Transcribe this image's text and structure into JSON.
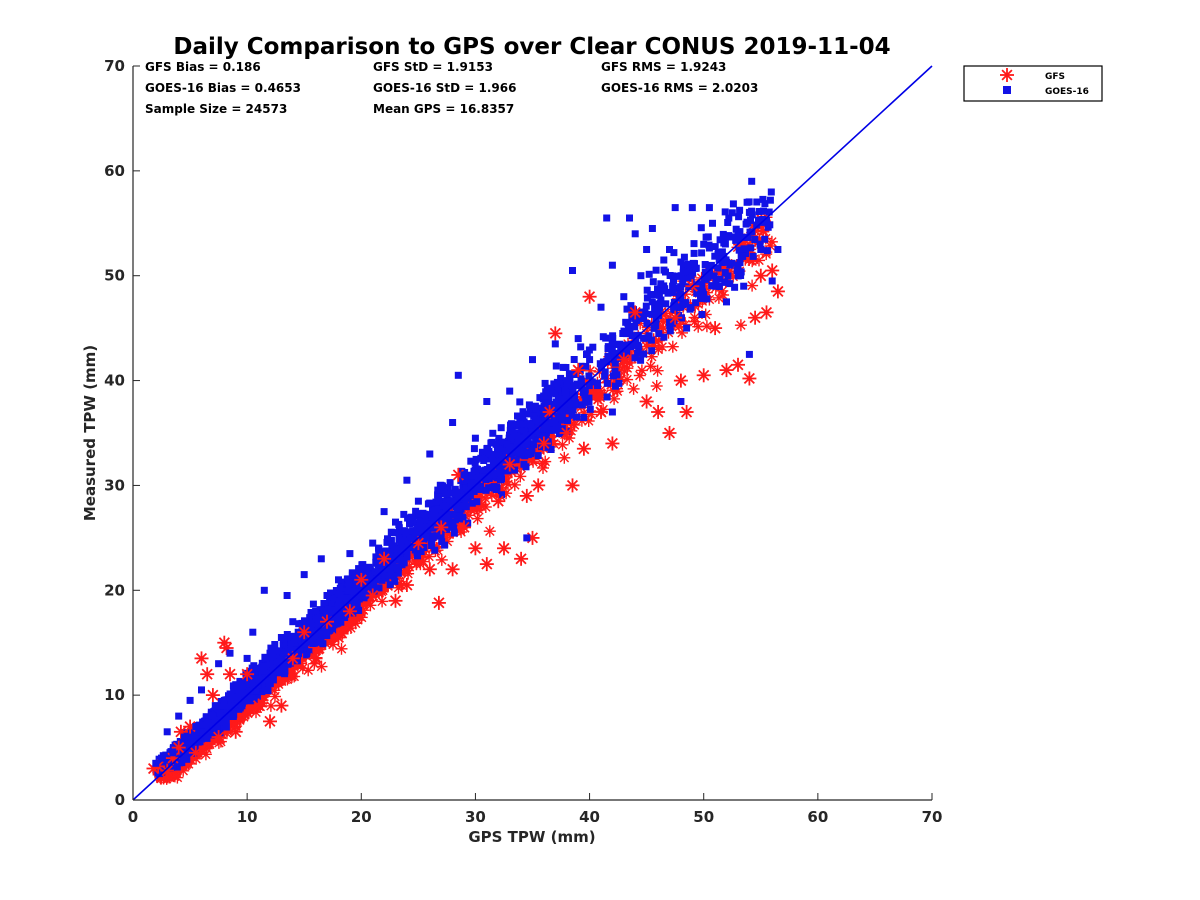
{
  "chart_data": {
    "type": "scatter",
    "title": "Daily Comparison to GPS over Clear CONUS 2019-11-04",
    "xlabel": "GPS TPW (mm)",
    "ylabel": "Measured TPW (mm)",
    "xlim": [
      0,
      70
    ],
    "ylim": [
      0,
      70
    ],
    "xticks": [
      0,
      10,
      20,
      30,
      40,
      50,
      60,
      70
    ],
    "yticks": [
      0,
      10,
      20,
      30,
      40,
      50,
      60,
      70
    ],
    "grid": false,
    "legend_position": "outside-top-right",
    "reference_line": {
      "name": "1:1 line",
      "x": [
        0,
        70
      ],
      "y": [
        0,
        70
      ],
      "color": "#0000e6"
    },
    "stats": [
      [
        "GFS Bias = 0.186",
        "GFS StD = 1.9153",
        "GFS RMS = 1.9243"
      ],
      [
        "GOES-16 Bias = 0.4653",
        "GOES-16 StD = 1.966",
        "GOES-16 RMS = 2.0203"
      ],
      [
        "Sample Size = 24573",
        "Mean GPS = 16.8357"
      ]
    ],
    "series": [
      {
        "name": "GFS",
        "marker": "asterisk",
        "color": "#ff1a1a",
        "points": [
          [
            1.8,
            3.0
          ],
          [
            2.2,
            3.2
          ],
          [
            3.0,
            2.8
          ],
          [
            3.5,
            4.0
          ],
          [
            4.0,
            5.0
          ],
          [
            4.2,
            6.5
          ],
          [
            5.0,
            7.0
          ],
          [
            5.5,
            4.5
          ],
          [
            6.0,
            13.5
          ],
          [
            6.5,
            12.0
          ],
          [
            7.0,
            10.0
          ],
          [
            7.5,
            6.0
          ],
          [
            8.0,
            15.0
          ],
          [
            8.2,
            14.5
          ],
          [
            8.5,
            12.0
          ],
          [
            9.0,
            6.5
          ],
          [
            10.0,
            12.0
          ],
          [
            11.0,
            9.0
          ],
          [
            12.0,
            7.5
          ],
          [
            13.0,
            9.0
          ],
          [
            14.0,
            13.5
          ],
          [
            15.0,
            16.0
          ],
          [
            16.0,
            13.5
          ],
          [
            17.0,
            17.0
          ],
          [
            18.0,
            15.5
          ],
          [
            19.0,
            18.0
          ],
          [
            20.0,
            21.0
          ],
          [
            21.0,
            19.5
          ],
          [
            22.0,
            23.0
          ],
          [
            23.0,
            19.0
          ],
          [
            24.0,
            20.5
          ],
          [
            25.0,
            24.5
          ],
          [
            26.0,
            22.0
          ],
          [
            26.8,
            18.8
          ],
          [
            27.0,
            26.0
          ],
          [
            28.0,
            22.0
          ],
          [
            28.5,
            31.0
          ],
          [
            29.0,
            26.0
          ],
          [
            30.0,
            24.0
          ],
          [
            31.0,
            22.5
          ],
          [
            32.0,
            28.5
          ],
          [
            32.5,
            24.0
          ],
          [
            33.0,
            32.0
          ],
          [
            34.0,
            23.0
          ],
          [
            34.5,
            29.0
          ],
          [
            35.0,
            25.0
          ],
          [
            35.5,
            30.0
          ],
          [
            36.0,
            34.0
          ],
          [
            36.5,
            37.0
          ],
          [
            37.0,
            44.5
          ],
          [
            38.0,
            35.0
          ],
          [
            38.5,
            30.0
          ],
          [
            39.0,
            41.0
          ],
          [
            39.5,
            33.5
          ],
          [
            40.0,
            48.0
          ],
          [
            41.0,
            37.0
          ],
          [
            42.0,
            34.0
          ],
          [
            43.0,
            42.0
          ],
          [
            44.0,
            46.5
          ],
          [
            45.0,
            38.0
          ],
          [
            46.0,
            37.0
          ],
          [
            47.0,
            35.0
          ],
          [
            47.5,
            46.0
          ],
          [
            48.0,
            40.0
          ],
          [
            48.5,
            37.0
          ],
          [
            49.0,
            49.0
          ],
          [
            50.0,
            40.5
          ],
          [
            51.0,
            45.0
          ],
          [
            52.0,
            41.0
          ],
          [
            53.0,
            41.5
          ],
          [
            54.0,
            40.2
          ],
          [
            54.5,
            46.0
          ],
          [
            55.0,
            50.0
          ],
          [
            55.5,
            46.5
          ],
          [
            56.0,
            50.5
          ],
          [
            56.5,
            48.5
          ]
        ]
      },
      {
        "name": "GOES-16",
        "marker": "square",
        "color": "#1212e6",
        "points": [
          [
            2.0,
            3.5
          ],
          [
            2.5,
            4.0
          ],
          [
            3.0,
            6.5
          ],
          [
            3.5,
            4.5
          ],
          [
            4.0,
            8.0
          ],
          [
            4.5,
            6.0
          ],
          [
            5.0,
            9.5
          ],
          [
            5.5,
            7.0
          ],
          [
            6.0,
            10.5
          ],
          [
            7.0,
            8.0
          ],
          [
            7.5,
            13.0
          ],
          [
            8.0,
            9.5
          ],
          [
            8.5,
            14.0
          ],
          [
            9.0,
            11.0
          ],
          [
            10.0,
            13.5
          ],
          [
            10.5,
            16.0
          ],
          [
            11.0,
            11.5
          ],
          [
            11.5,
            20.0
          ],
          [
            12.0,
            14.0
          ],
          [
            13.0,
            15.5
          ],
          [
            13.5,
            19.5
          ],
          [
            14.0,
            17.0
          ],
          [
            15.0,
            21.5
          ],
          [
            16.0,
            18.0
          ],
          [
            16.5,
            23.0
          ],
          [
            17.0,
            19.5
          ],
          [
            18.0,
            21.0
          ],
          [
            19.0,
            23.5
          ],
          [
            20.0,
            22.0
          ],
          [
            21.0,
            24.5
          ],
          [
            22.0,
            27.5
          ],
          [
            22.5,
            22.0
          ],
          [
            23.0,
            26.5
          ],
          [
            24.0,
            30.5
          ],
          [
            24.5,
            25.0
          ],
          [
            25.0,
            28.5
          ],
          [
            26.0,
            33.0
          ],
          [
            27.0,
            30.0
          ],
          [
            28.0,
            36.0
          ],
          [
            28.5,
            40.5
          ],
          [
            29.0,
            31.0
          ],
          [
            30.0,
            34.5
          ],
          [
            31.0,
            38.0
          ],
          [
            32.0,
            33.5
          ],
          [
            33.0,
            39.0
          ],
          [
            34.0,
            36.5
          ],
          [
            35.0,
            42.0
          ],
          [
            36.0,
            38.5
          ],
          [
            37.0,
            43.5
          ],
          [
            38.0,
            40.0
          ],
          [
            38.5,
            50.5
          ],
          [
            39.0,
            44.0
          ],
          [
            40.0,
            42.0
          ],
          [
            41.0,
            47.0
          ],
          [
            41.5,
            55.5
          ],
          [
            42.0,
            51.0
          ],
          [
            43.0,
            48.0
          ],
          [
            43.5,
            55.5
          ],
          [
            44.0,
            54.0
          ],
          [
            44.5,
            50.0
          ],
          [
            45.0,
            52.5
          ],
          [
            45.5,
            54.5
          ],
          [
            46.0,
            48.5
          ],
          [
            46.5,
            51.5
          ],
          [
            47.0,
            52.5
          ],
          [
            47.5,
            56.5
          ],
          [
            48.0,
            50.0
          ],
          [
            48.5,
            45.0
          ],
          [
            49.0,
            56.5
          ],
          [
            50.0,
            53.0
          ],
          [
            50.5,
            56.5
          ],
          [
            51.0,
            49.0
          ],
          [
            52.0,
            47.5
          ],
          [
            52.5,
            56.0
          ],
          [
            53.0,
            51.0
          ],
          [
            53.5,
            49.0
          ],
          [
            54.0,
            42.5
          ],
          [
            54.2,
            59.0
          ],
          [
            55.0,
            52.5
          ],
          [
            56.0,
            49.5
          ],
          [
            56.5,
            52.5
          ],
          [
            34.5,
            25.0
          ],
          [
            42.0,
            37.0
          ],
          [
            48.0,
            38.0
          ]
        ]
      }
    ]
  }
}
